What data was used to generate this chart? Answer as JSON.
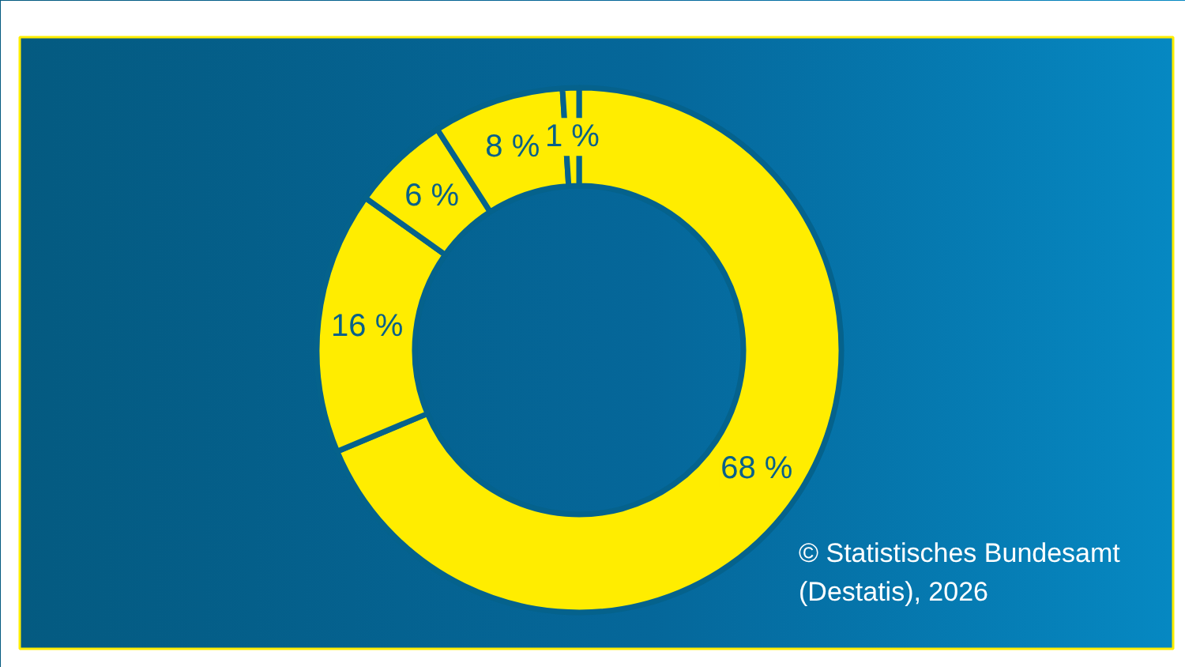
{
  "chart_data": {
    "type": "donut",
    "categories": [
      null,
      null,
      null,
      null,
      null
    ],
    "values": [
      68,
      16,
      6,
      8,
      1
    ],
    "colors": [
      "#ffed00",
      "#ffed00",
      "#ffed00",
      "#ffed00",
      "#ffed00"
    ],
    "value_labels": [
      "68 %",
      "16 %",
      "6 %",
      "8 %",
      "1 %"
    ],
    "annotations": [
      "© Statistisches Bundesamt (Destatis), 2026"
    ]
  }
}
